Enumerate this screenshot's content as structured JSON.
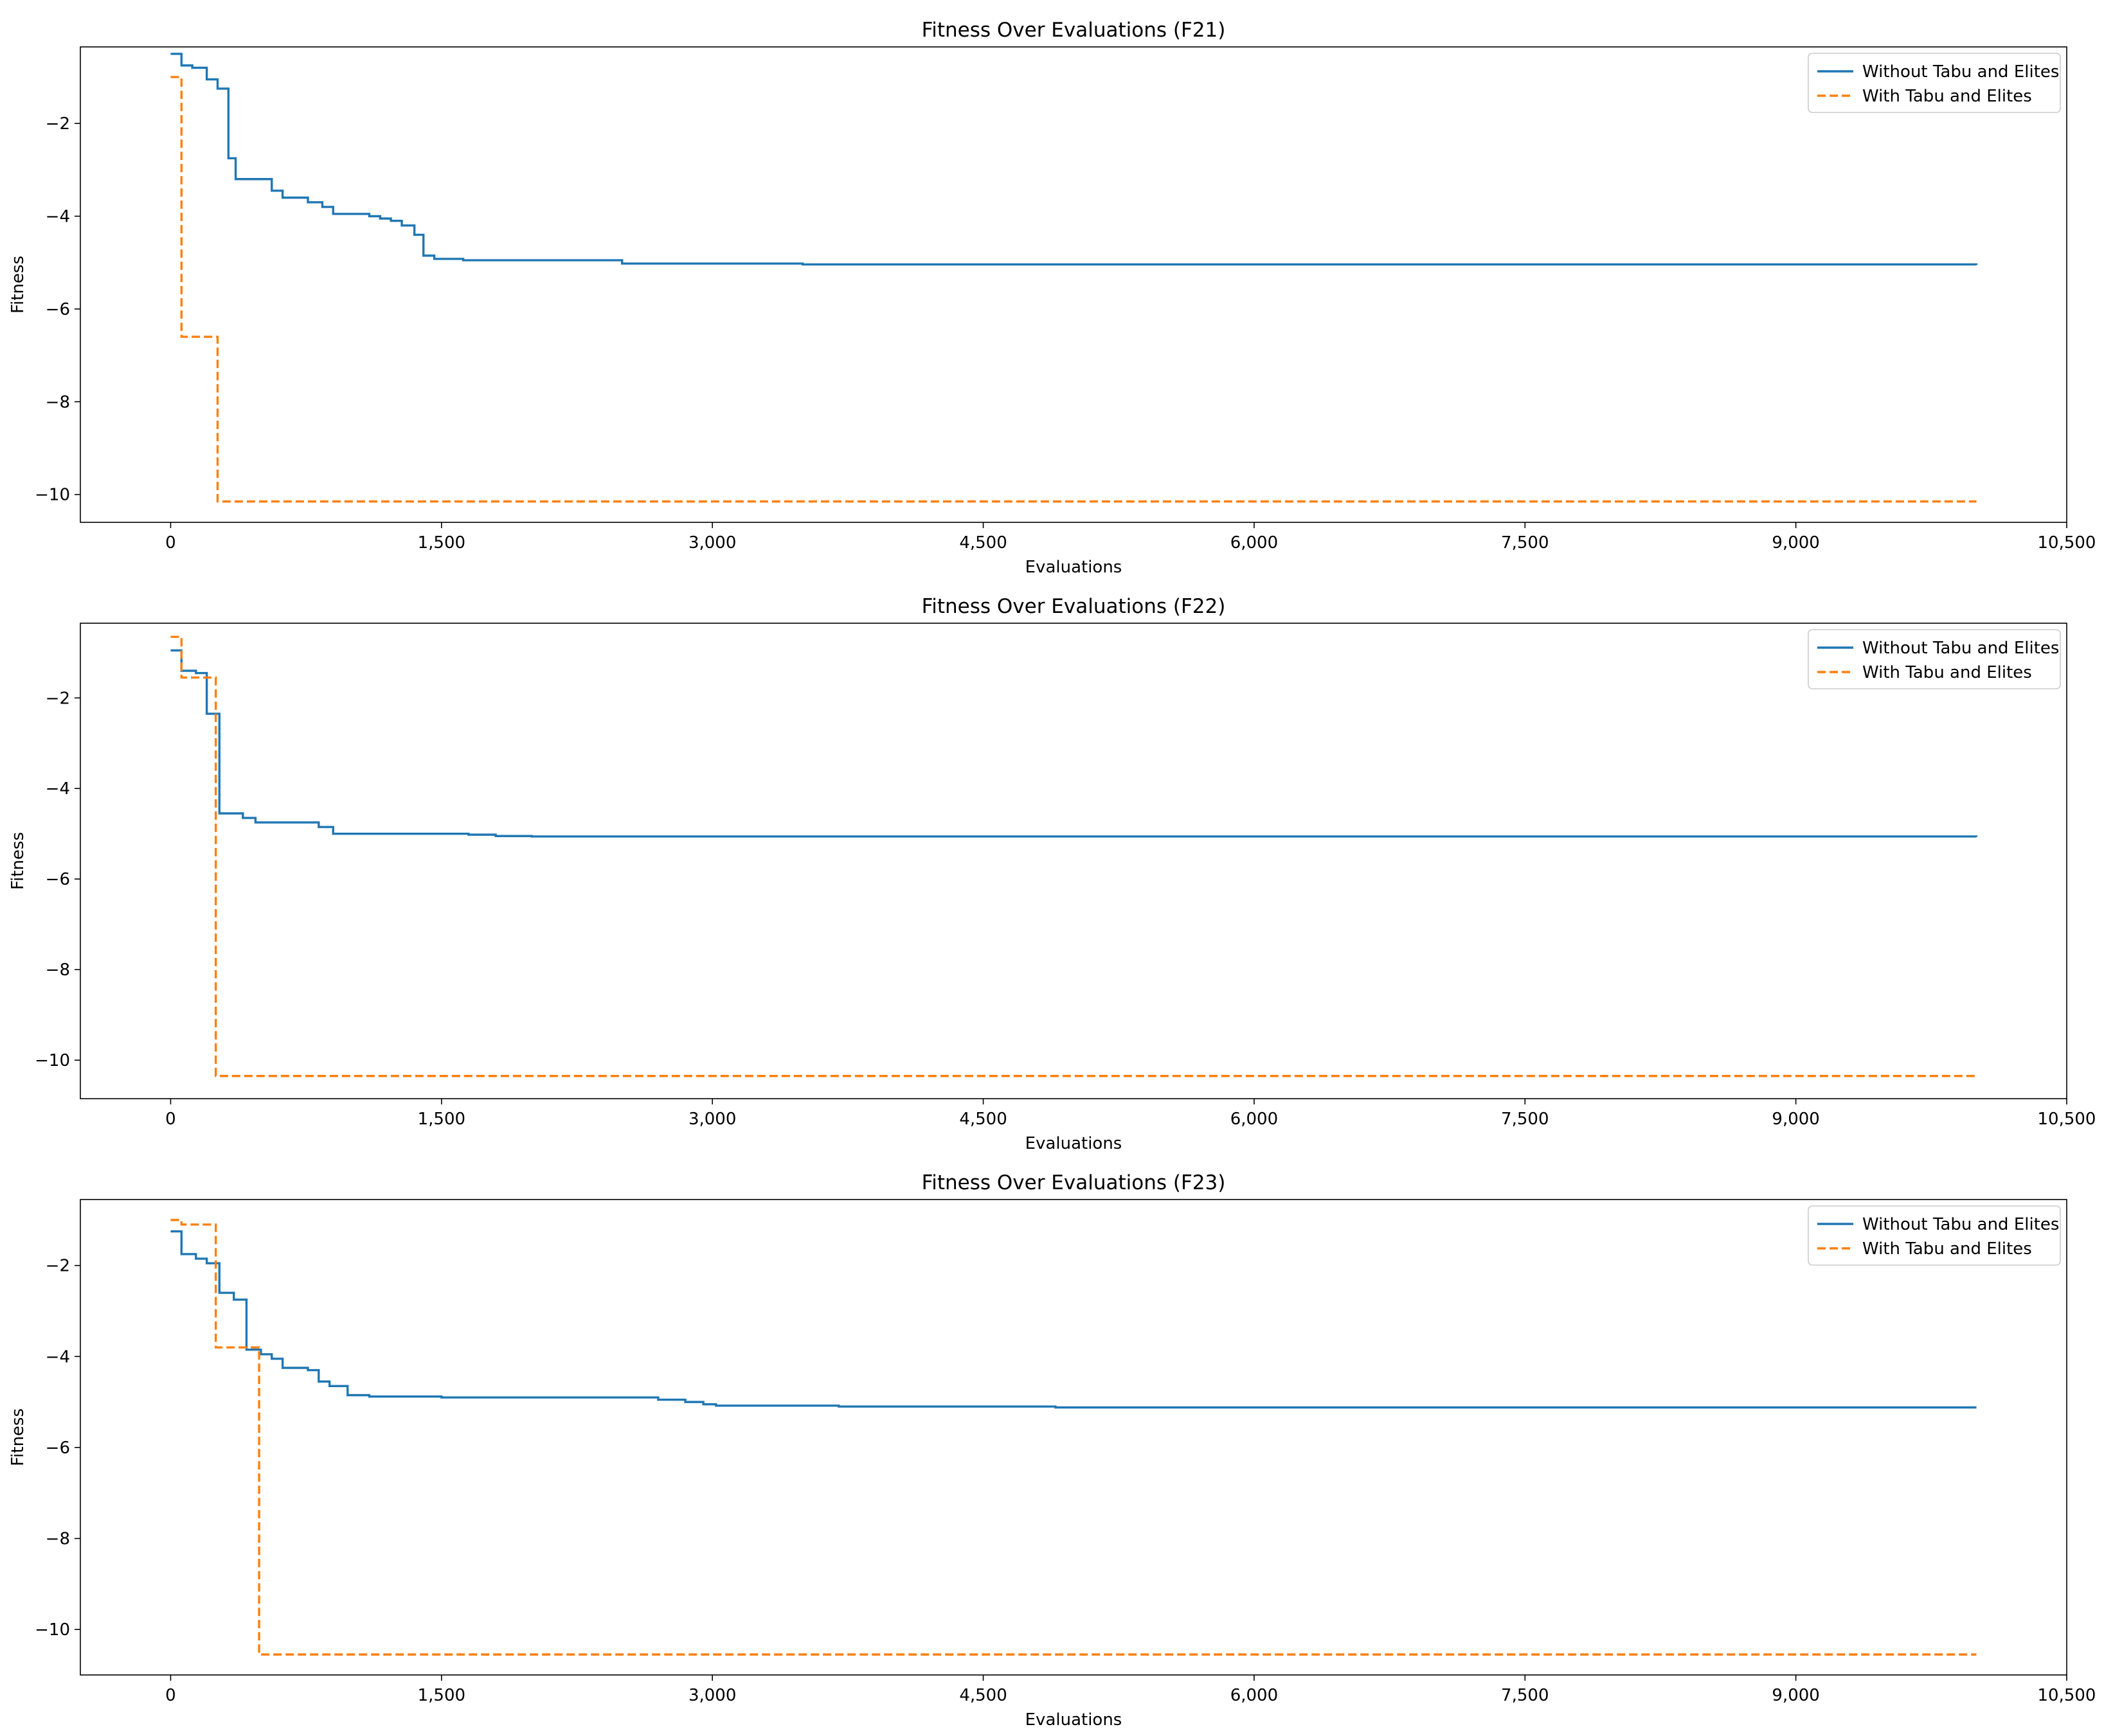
{
  "chart_data": [
    {
      "type": "line",
      "title": "Fitness Over Evaluations (F21)",
      "xlabel": "Evaluations",
      "ylabel": "Fitness",
      "xlim": [
        -500,
        10500
      ],
      "ylim": [
        -10.6,
        -0.35
      ],
      "xticks": [
        0,
        1500,
        3000,
        4500,
        6000,
        7500,
        9000,
        10500
      ],
      "xtick_labels": [
        "0",
        "1,500",
        "3,000",
        "4,500",
        "6,000",
        "7,500",
        "9,000",
        "10,500"
      ],
      "yticks": [
        -10,
        -8,
        -6,
        -4,
        -2
      ],
      "ytick_labels": [
        "−10",
        "−8",
        "−6",
        "−4",
        "−2"
      ],
      "grid": false,
      "legend_position": "top-right",
      "series": [
        {
          "name": "Without Tabu and Elites",
          "color": "#1f77b4",
          "style": "solid",
          "step": true,
          "x": [
            0,
            60,
            120,
            200,
            260,
            320,
            360,
            410,
            560,
            620,
            760,
            840,
            900,
            1050,
            1100,
            1160,
            1220,
            1280,
            1350,
            1400,
            1460,
            1620,
            2500,
            3500,
            10000
          ],
          "y": [
            -0.5,
            -0.75,
            -0.8,
            -1.05,
            -1.25,
            -2.75,
            -3.2,
            -3.2,
            -3.45,
            -3.6,
            -3.7,
            -3.8,
            -3.95,
            -3.95,
            -4.0,
            -4.05,
            -4.1,
            -4.2,
            -4.4,
            -4.85,
            -4.92,
            -4.95,
            -5.02,
            -5.04,
            -5.05
          ]
        },
        {
          "name": "With Tabu and Elites",
          "color": "#ff7f0e",
          "style": "dashed",
          "step": true,
          "x": [
            0,
            60,
            260,
            10000
          ],
          "y": [
            -1.0,
            -6.6,
            -10.15,
            -10.15
          ]
        }
      ]
    },
    {
      "type": "line",
      "title": "Fitness Over Evaluations (F22)",
      "xlabel": "Evaluations",
      "ylabel": "Fitness",
      "xlim": [
        -500,
        10500
      ],
      "ylim": [
        -10.85,
        -0.35
      ],
      "xticks": [
        0,
        1500,
        3000,
        4500,
        6000,
        7500,
        9000,
        10500
      ],
      "xtick_labels": [
        "0",
        "1,500",
        "3,000",
        "4,500",
        "6,000",
        "7,500",
        "9,000",
        "10,500"
      ],
      "yticks": [
        -10,
        -8,
        -6,
        -4,
        -2
      ],
      "ytick_labels": [
        "−10",
        "−8",
        "−6",
        "−4",
        "−2"
      ],
      "grid": false,
      "legend_position": "top-right",
      "series": [
        {
          "name": "Without Tabu and Elites",
          "color": "#1f77b4",
          "style": "solid",
          "step": true,
          "x": [
            0,
            60,
            140,
            200,
            270,
            400,
            470,
            820,
            900,
            1650,
            1800,
            2000,
            10000
          ],
          "y": [
            -0.95,
            -1.4,
            -1.45,
            -2.35,
            -4.55,
            -4.65,
            -4.75,
            -4.85,
            -5.0,
            -5.02,
            -5.05,
            -5.06,
            -5.07
          ]
        },
        {
          "name": "With Tabu and Elites",
          "color": "#ff7f0e",
          "style": "dashed",
          "step": true,
          "x": [
            0,
            60,
            250,
            10000
          ],
          "y": [
            -0.65,
            -1.55,
            -10.35,
            -10.35
          ]
        }
      ]
    },
    {
      "type": "line",
      "title": "Fitness Over Evaluations (F23)",
      "xlabel": "Evaluations",
      "ylabel": "Fitness",
      "xlim": [
        -500,
        10500
      ],
      "ylim": [
        -11.0,
        -0.55
      ],
      "xticks": [
        0,
        1500,
        3000,
        4500,
        6000,
        7500,
        9000,
        10500
      ],
      "xtick_labels": [
        "0",
        "1,500",
        "3,000",
        "4,500",
        "6,000",
        "7,500",
        "9,000",
        "10,500"
      ],
      "yticks": [
        -10,
        -8,
        -6,
        -4,
        -2
      ],
      "ytick_labels": [
        "−10",
        "−8",
        "−6",
        "−4",
        "−2"
      ],
      "grid": false,
      "legend_position": "top-right",
      "series": [
        {
          "name": "Without Tabu and Elites",
          "color": "#1f77b4",
          "style": "solid",
          "step": true,
          "x": [
            0,
            60,
            140,
            200,
            270,
            350,
            420,
            500,
            560,
            620,
            760,
            820,
            880,
            980,
            1100,
            1500,
            2700,
            2850,
            2950,
            3020,
            3700,
            4900,
            10000
          ],
          "y": [
            -1.25,
            -1.75,
            -1.85,
            -1.95,
            -2.6,
            -2.75,
            -3.85,
            -3.95,
            -4.05,
            -4.25,
            -4.3,
            -4.55,
            -4.65,
            -4.85,
            -4.88,
            -4.9,
            -4.95,
            -5.0,
            -5.05,
            -5.08,
            -5.1,
            -5.12,
            -5.12
          ]
        },
        {
          "name": "With Tabu and Elites",
          "color": "#ff7f0e",
          "style": "dashed",
          "step": true,
          "x": [
            0,
            60,
            250,
            490,
            10000
          ],
          "y": [
            -1.0,
            -1.1,
            -3.8,
            -10.55,
            -10.55
          ]
        }
      ]
    }
  ]
}
